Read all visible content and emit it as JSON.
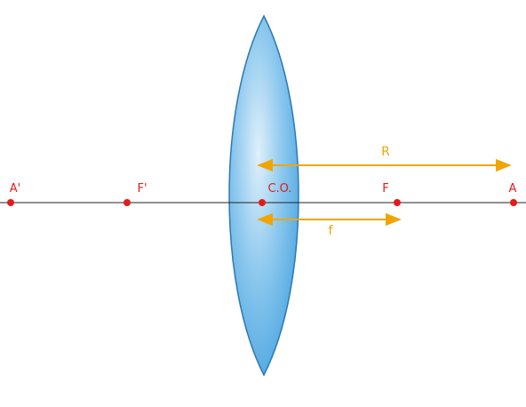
{
  "colors": {
    "axis": "#222222",
    "point": "#e31b1b",
    "point_label": "#e31b1b",
    "dimension": "#f0a500",
    "lens_center": "#dff0fb",
    "lens_mid": "#8ec9ee",
    "lens_edge": "#3f9fde",
    "lens_outline": "#2c79b3"
  },
  "points": [
    {
      "id": "a-prime",
      "label": "A'"
    },
    {
      "id": "f-prime",
      "label": "F'"
    },
    {
      "id": "optical-center",
      "label": "C.O."
    },
    {
      "id": "focus",
      "label": "F"
    },
    {
      "id": "a",
      "label": "A"
    }
  ],
  "dimensions": {
    "radius_label": "R",
    "focal_label": "f"
  }
}
